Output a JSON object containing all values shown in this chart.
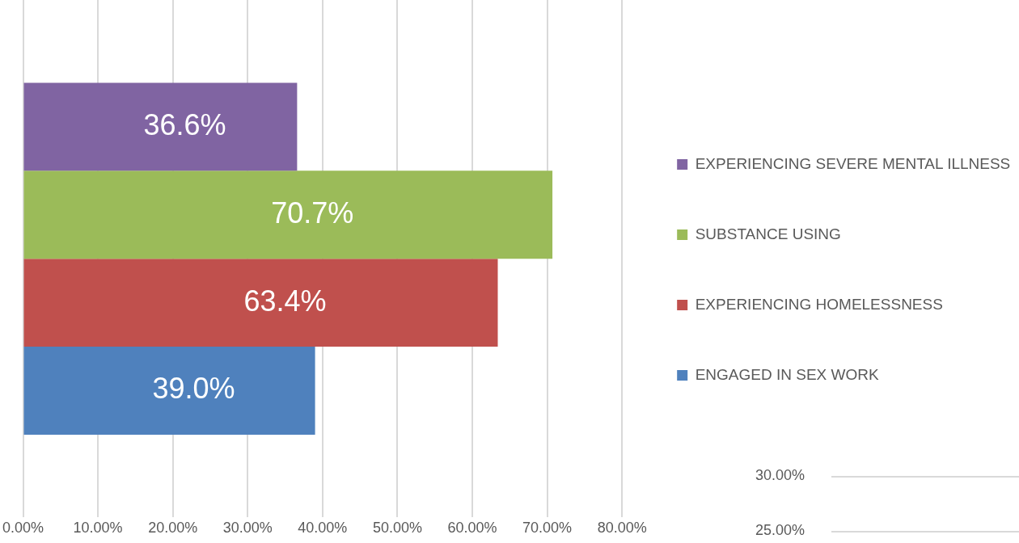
{
  "chart_data": [
    {
      "type": "bar",
      "orientation": "horizontal",
      "categories": [
        null
      ],
      "series": [
        {
          "name": "ENGAGED IN SEX WORK",
          "color": "#4f81bd",
          "values": [
            39.0
          ],
          "value_labels": [
            "39.0%"
          ]
        },
        {
          "name": "EXPERIENCING HOMELESSNESS",
          "color": "#c0504d",
          "values": [
            63.4
          ],
          "value_labels": [
            "63.4%"
          ]
        },
        {
          "name": "SUBSTANCE USING",
          "color": "#9bbb59",
          "values": [
            70.7
          ],
          "value_labels": [
            "70.7%"
          ]
        },
        {
          "name": "EXPERIENCING SEVERE MENTAL ILLNESS",
          "color": "#8064a2",
          "values": [
            36.6
          ],
          "value_labels": [
            "36.6%"
          ]
        }
      ],
      "xlim": [
        0,
        80
      ],
      "xticks": [
        {
          "value": 0,
          "label": "0.00%"
        },
        {
          "value": 10,
          "label": "10.00%"
        },
        {
          "value": 20,
          "label": "20.00%"
        },
        {
          "value": 30,
          "label": "30.00%"
        },
        {
          "value": 40,
          "label": "40.00%"
        },
        {
          "value": 50,
          "label": "50.00%"
        },
        {
          "value": 60,
          "label": "60.00%"
        },
        {
          "value": 70,
          "label": "70.00%"
        },
        {
          "value": 80,
          "label": "80.00%"
        }
      ],
      "grid": "x",
      "legend": "right"
    },
    {
      "type": "other",
      "annotations": [
        "30.00%",
        "25.00%"
      ]
    }
  ]
}
